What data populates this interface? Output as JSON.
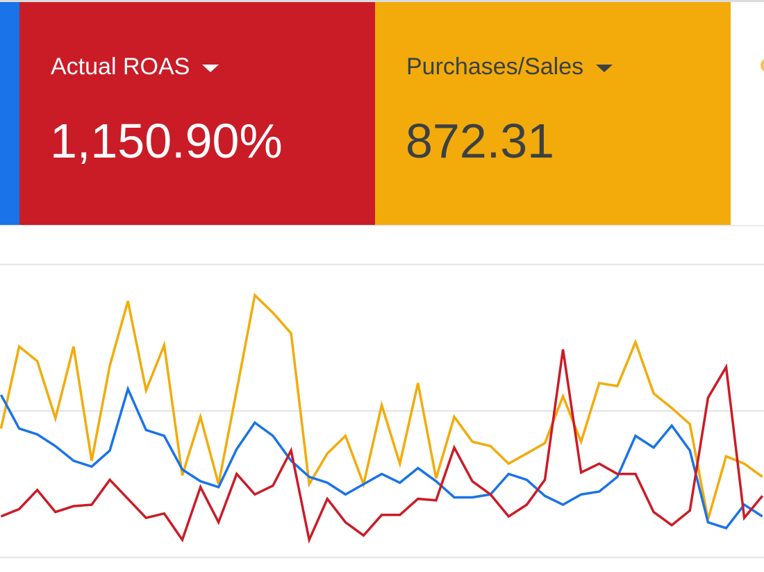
{
  "cards": [
    {
      "name": "blue-metric",
      "color": "#1a73e8"
    },
    {
      "name": "actual-roas",
      "label": "Actual ROAS",
      "value": "1,150.90%",
      "color": "#c91c27"
    },
    {
      "name": "purchases-sales",
      "label": "Purchases/Sales",
      "value": "872.31",
      "color": "#f2ab0b"
    }
  ],
  "chart_data": {
    "type": "line",
    "grid": true,
    "gridlines": [
      0,
      100,
      200
    ],
    "ylim": [
      0,
      200
    ],
    "series": [
      {
        "color": "#f2ab0b",
        "values": [
          88,
          144,
          134,
          95,
          144,
          66,
          131,
          175,
          114,
          145,
          56,
          96,
          50,
          114,
          179,
          167,
          153,
          50,
          71,
          83,
          50,
          104,
          64,
          119,
          54,
          96,
          79,
          76,
          64,
          71,
          78,
          110,
          79,
          119,
          117,
          147,
          112,
          102,
          91,
          26,
          69,
          64,
          55
        ]
      },
      {
        "color": "#1a73e8",
        "values": [
          111,
          88,
          84,
          76,
          66,
          62,
          73,
          115,
          87,
          83,
          60,
          52,
          48,
          74,
          92,
          83,
          66,
          55,
          51,
          43,
          50,
          57,
          51,
          61,
          52,
          41,
          41,
          43,
          57,
          53,
          42,
          36,
          43,
          45,
          55,
          83,
          75,
          90,
          73,
          24,
          20,
          36,
          28
        ]
      },
      {
        "color": "#c91c27",
        "values": [
          28,
          33,
          46,
          31,
          35,
          36,
          53,
          40,
          27,
          30,
          12,
          48,
          24,
          57,
          43,
          49,
          73,
          12,
          40,
          24,
          15,
          29,
          29,
          40,
          39,
          75,
          52,
          43,
          28,
          36,
          53,
          142,
          58,
          64,
          57,
          57,
          31,
          22,
          32,
          109,
          130,
          27,
          42
        ]
      }
    ]
  }
}
